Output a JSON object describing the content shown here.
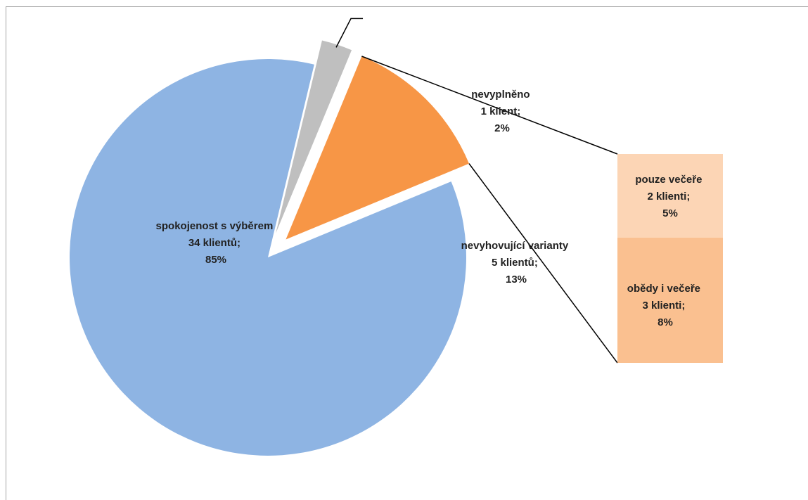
{
  "chart_data": {
    "type": "pie",
    "title": "",
    "slices": [
      {
        "name": "spokojenost  s výběrem",
        "value": 34,
        "value_label": "34 klientů;",
        "percent_label": "85%",
        "color": "#8eb4e3",
        "exploded": false
      },
      {
        "name": "nevyplněno",
        "value": 1,
        "value_label": "1 klient;",
        "percent_label": "2%",
        "color": "#bfbfbf",
        "exploded": true
      },
      {
        "name": "nevyhovující varianty",
        "value": 5,
        "value_label": "5 klientů;",
        "percent_label": "13%",
        "color": "#f79646",
        "exploded": true
      }
    ],
    "breakdown": {
      "type": "bar-of-pie",
      "source_slice": "nevyhovující varianty",
      "segments": [
        {
          "name": "pouze večeře",
          "value": 2,
          "value_label": "2 klienti;",
          "percent_label": "5%",
          "color": "#fcd5b5"
        },
        {
          "name": "obědy i večeře",
          "value": 3,
          "value_label": "3 klienti;",
          "percent_label": "8%",
          "color": "#fac090"
        }
      ]
    }
  }
}
